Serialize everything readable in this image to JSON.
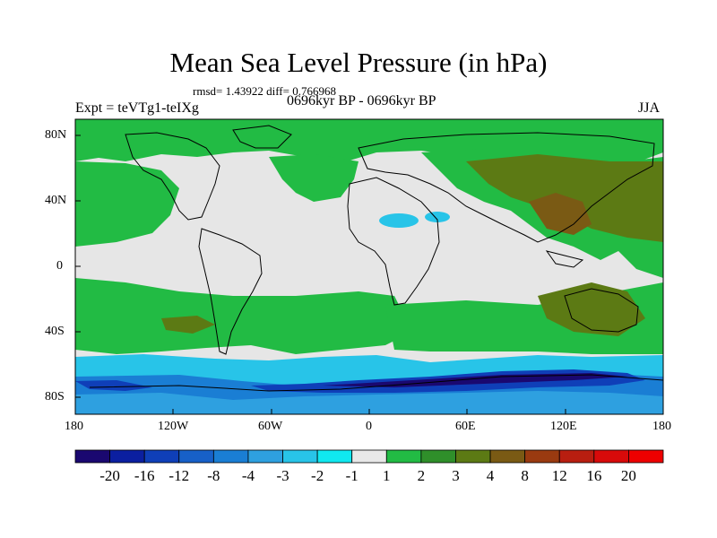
{
  "title": "Mean Sea Level Pressure (in hPa)",
  "stats": "rmsd= 1.43922  diff= 0.766968",
  "left_label": "Expt = teVTg1-teIXg",
  "center_label": "0696kyr BP - 0696kyr BP",
  "right_label": "JJA",
  "lat_ticks": [
    "80N",
    "40N",
    "0",
    "40S",
    "80S"
  ],
  "lon_ticks": [
    "180",
    "120W",
    "60W",
    "0",
    "60E",
    "120E",
    "180"
  ],
  "colorbar": {
    "labels": [
      "-20",
      "-16",
      "-12",
      "-8",
      "-4",
      "-3",
      "-2",
      "-1",
      "1",
      "2",
      "3",
      "4",
      "8",
      "12",
      "16",
      "20"
    ],
    "colors": [
      "#1a0870",
      "#0b1fa0",
      "#0f3fb8",
      "#1760c8",
      "#1a7ed4",
      "#2ea0e0",
      "#28c4e8",
      "#10e8f0",
      "#e8e8e8",
      "#22bb44",
      "#2f8f2a",
      "#5c7a14",
      "#7a5a14",
      "#9a3a10",
      "#b81e10",
      "#d80a0a",
      "#ee0000"
    ]
  },
  "map_regions": {
    "north_polar_band": "positive",
    "mid_latitude_oceans": "positive",
    "asia_west_pacific": "strong-positive",
    "tropics": "near-zero",
    "southern_ocean": "negative",
    "antarctic_coast": "strong-negative"
  }
}
